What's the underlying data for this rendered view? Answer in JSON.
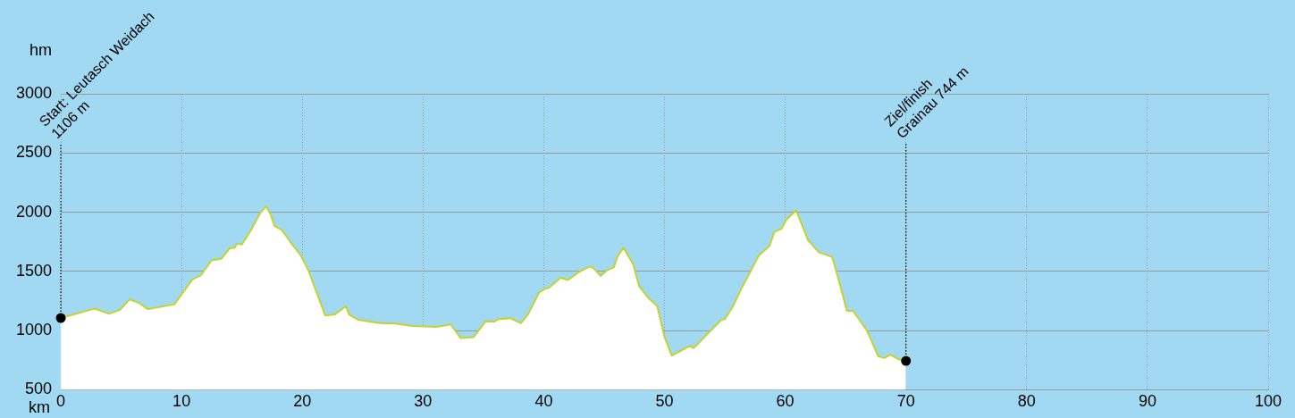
{
  "chart_data": {
    "type": "area",
    "xlabel": "km",
    "ylabel": "hm",
    "x": [
      0,
      2.8,
      4.0,
      4.9,
      5.7,
      6.6,
      7.2,
      9.4,
      10.9,
      11.6,
      12.5,
      13.3,
      14.0,
      14.4,
      14.6,
      15.0,
      15.8,
      16.5,
      17.0,
      17.4,
      17.7,
      18.3,
      19.2,
      19.8,
      20.5,
      21.9,
      22.7,
      23.6,
      23.9,
      24.6,
      26.4,
      27.7,
      29.1,
      31.1,
      32.3,
      33.1,
      34.2,
      35.2,
      35.9,
      36.2,
      37.2,
      38.1,
      38.7,
      39.6,
      40.1,
      40.4,
      41.4,
      42.0,
      42.9,
      43.8,
      44.1,
      44.7,
      45.2,
      45.8,
      46.1,
      46.6,
      47.4,
      47.9,
      48.7,
      49.4,
      50.0,
      50.6,
      52.1,
      52.4,
      54.7,
      55.0,
      55.6,
      56.4,
      57.1,
      57.8,
      58.7,
      59.1,
      59.7,
      60.1,
      60.9,
      61.9,
      62.8,
      63.9,
      64.5,
      65.1,
      65.6,
      66.2,
      66.8,
      67.3,
      67.7,
      68.2,
      68.7,
      69.4,
      70.0
    ],
    "series": [
      {
        "color": "#c4d42f",
        "values": [
          1106,
          1186,
          1141,
          1175,
          1264,
          1226,
          1181,
          1221,
          1432,
          1467,
          1593,
          1607,
          1695,
          1700,
          1735,
          1727,
          1856,
          1990,
          2049,
          1977,
          1883,
          1851,
          1722,
          1647,
          1510,
          1127,
          1137,
          1205,
          1133,
          1092,
          1063,
          1060,
          1039,
          1031,
          1052,
          937,
          945,
          1079,
          1076,
          1095,
          1105,
          1063,
          1137,
          1320,
          1352,
          1360,
          1446,
          1427,
          1494,
          1539,
          1529,
          1462,
          1507,
          1534,
          1623,
          1700,
          1561,
          1374,
          1272,
          1207,
          945,
          789,
          870,
          851,
          1089,
          1097,
          1191,
          1360,
          1494,
          1633,
          1716,
          1834,
          1861,
          1936,
          2016,
          1762,
          1660,
          1620,
          1400,
          1167,
          1167,
          1084,
          993,
          878,
          784,
          768,
          797,
          757,
          744
        ]
      }
    ],
    "xlim": [
      0,
      100
    ],
    "xticks": [
      0,
      10,
      20,
      30,
      40,
      50,
      60,
      70,
      80,
      90,
      100
    ],
    "ylim": [
      500,
      3000
    ],
    "yticks": [
      500,
      1000,
      1500,
      2000,
      2500,
      3000
    ],
    "grid": true,
    "marker": "none",
    "legend": false,
    "annotations": [
      {
        "text": "Start: Leutasch Weidach\n1106 m",
        "x": 0,
        "y": 1106
      },
      {
        "text": "Ziel/finish\nGrainau 744 m",
        "x": 70.0,
        "y": 744
      }
    ]
  }
}
